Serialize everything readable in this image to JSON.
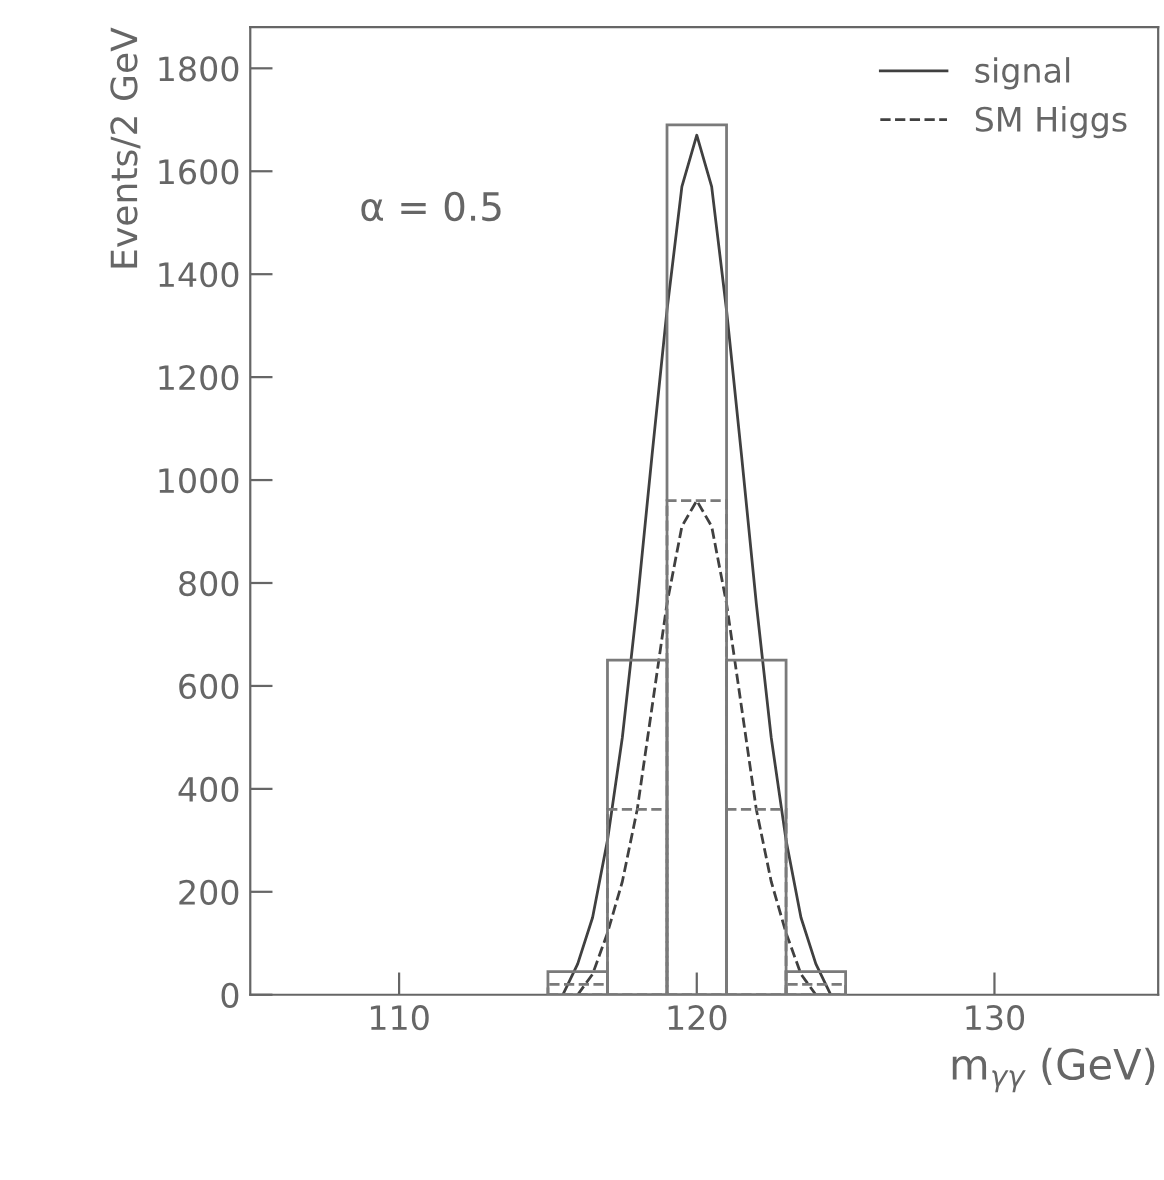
{
  "chart_data": {
    "type": "histogram",
    "xlabel": "m$_{γγ}$ (GeV)",
    "ylabel": "Events/2 GeV",
    "annotations": [
      "α = 0.5"
    ],
    "bins": [
      115,
      117,
      119,
      121,
      123,
      125
    ],
    "series": [
      {
        "color": "#7a7a7a",
        "line_style": "solid",
        "values": [
          45,
          650,
          1690,
          650,
          45
        ]
      },
      {
        "color": "#7a7a7a",
        "line_style": "dashed",
        "values": [
          20,
          360,
          960,
          360,
          20
        ]
      },
      {
        "type": "line",
        "name": "signal",
        "color": "#404040",
        "line_style": "solid",
        "x": [
          115.5,
          116,
          116.5,
          117,
          117.5,
          118,
          118.5,
          119,
          119.5,
          120,
          120.5,
          121,
          121.5,
          122,
          122.5,
          123,
          123.5,
          124,
          124.5
        ],
        "values": [
          0,
          60,
          150,
          300,
          500,
          760,
          1050,
          1330,
          1570,
          1670,
          1570,
          1330,
          1050,
          760,
          500,
          300,
          150,
          60,
          0
        ]
      },
      {
        "type": "line",
        "name": "SM Higgs",
        "color": "#404040",
        "line_style": "dashed",
        "x": [
          116,
          116.5,
          117,
          117.5,
          118,
          118.5,
          119,
          119.5,
          120,
          120.5,
          121,
          121.5,
          122,
          122.5,
          123,
          123.5,
          124
        ],
        "values": [
          0,
          40,
          120,
          220,
          360,
          560,
          760,
          910,
          960,
          910,
          760,
          560,
          360,
          220,
          120,
          40,
          0
        ]
      }
    ],
    "xlim": [
      105,
      135.5
    ],
    "ylim": [
      0,
      1880
    ],
    "xticks": [
      110,
      120,
      130
    ],
    "yticks": [
      0,
      200,
      400,
      600,
      800,
      1000,
      1200,
      1400,
      1600,
      1800
    ],
    "grid": false,
    "legend": "top right"
  }
}
